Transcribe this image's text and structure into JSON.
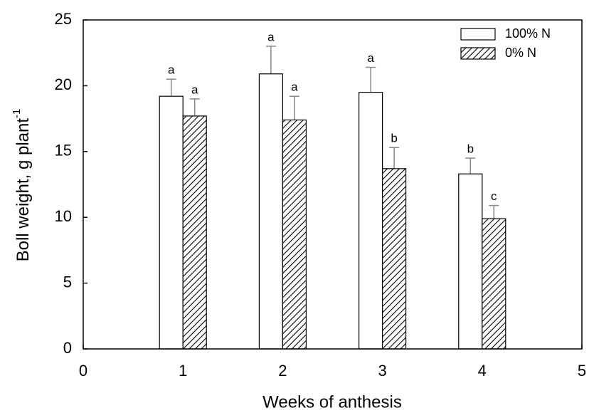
{
  "chart_data": {
    "type": "bar",
    "x_label": "Weeks of anthesis",
    "y_label": "Boll weight, g plant",
    "y_label_sup": "-1",
    "categories": [
      1,
      2,
      3,
      4
    ],
    "series": [
      {
        "name": "100% N",
        "color": "#ffffff",
        "hatch": false,
        "values": [
          19.2,
          20.9,
          19.5,
          13.3
        ],
        "errors": [
          1.3,
          2.1,
          1.9,
          1.2
        ],
        "letters": [
          "a",
          "a",
          "a",
          "b"
        ]
      },
      {
        "name": "0% N",
        "color": "#ffffff",
        "hatch": true,
        "values": [
          17.7,
          17.4,
          13.7,
          9.9
        ],
        "errors": [
          1.3,
          1.8,
          1.6,
          1.0
        ],
        "letters": [
          "a",
          "a",
          "b",
          "c"
        ]
      }
    ],
    "xlim": [
      0,
      5
    ],
    "xticks": [
      0,
      1,
      2,
      3,
      4,
      5
    ],
    "ylim": [
      0,
      25
    ],
    "yticks": [
      0,
      5,
      10,
      15,
      20,
      25
    ],
    "legend": "upper right"
  }
}
